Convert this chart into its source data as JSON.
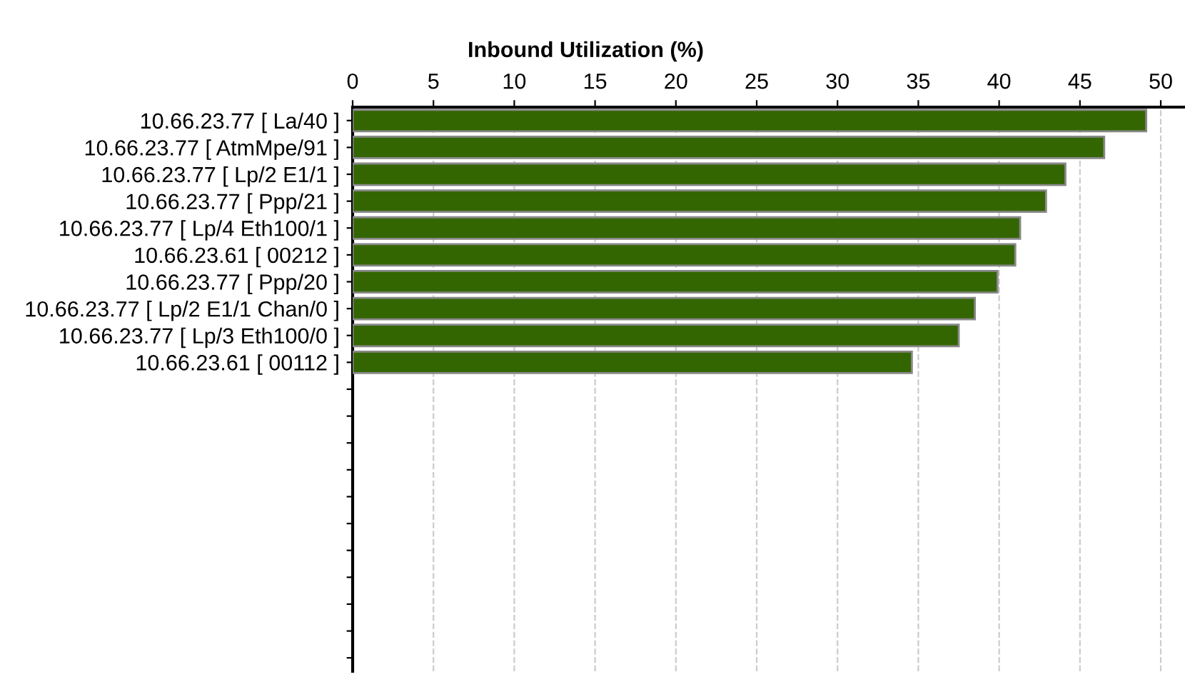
{
  "chart_data": {
    "type": "bar",
    "orientation": "horizontal",
    "xlabel": "Inbound Utilization (%)",
    "categories": [
      "10.66.23.77 [ La/40 ]",
      "10.66.23.77 [ AtmMpe/91 ]",
      "10.66.23.77 [ Lp/2 E1/1 ]",
      "10.66.23.77 [ Ppp/21 ]",
      "10.66.23.77 [ Lp/4 Eth100/1 ]",
      "10.66.23.61 [ 00212 ]",
      "10.66.23.77 [ Ppp/20 ]",
      "10.66.23.77 [ Lp/2 E1/1 Chan/0 ]",
      "10.66.23.77 [ Lp/3 Eth100/0 ]",
      "10.66.23.61 [ 00112 ]",
      null,
      null,
      null,
      null,
      null,
      null,
      null,
      null,
      null,
      null,
      null
    ],
    "values": [
      49.1,
      46.5,
      44.1,
      42.9,
      41.3,
      41.0,
      39.9,
      38.5,
      37.5,
      34.6,
      null,
      null,
      null,
      null,
      null,
      null,
      null,
      null,
      null,
      null,
      null
    ],
    "color": "#336600",
    "xlim": [
      0,
      51.5
    ],
    "xticks": [
      0,
      5,
      10,
      15,
      20,
      25,
      30,
      35,
      40,
      45,
      50
    ],
    "grid": "x",
    "legend": false
  }
}
